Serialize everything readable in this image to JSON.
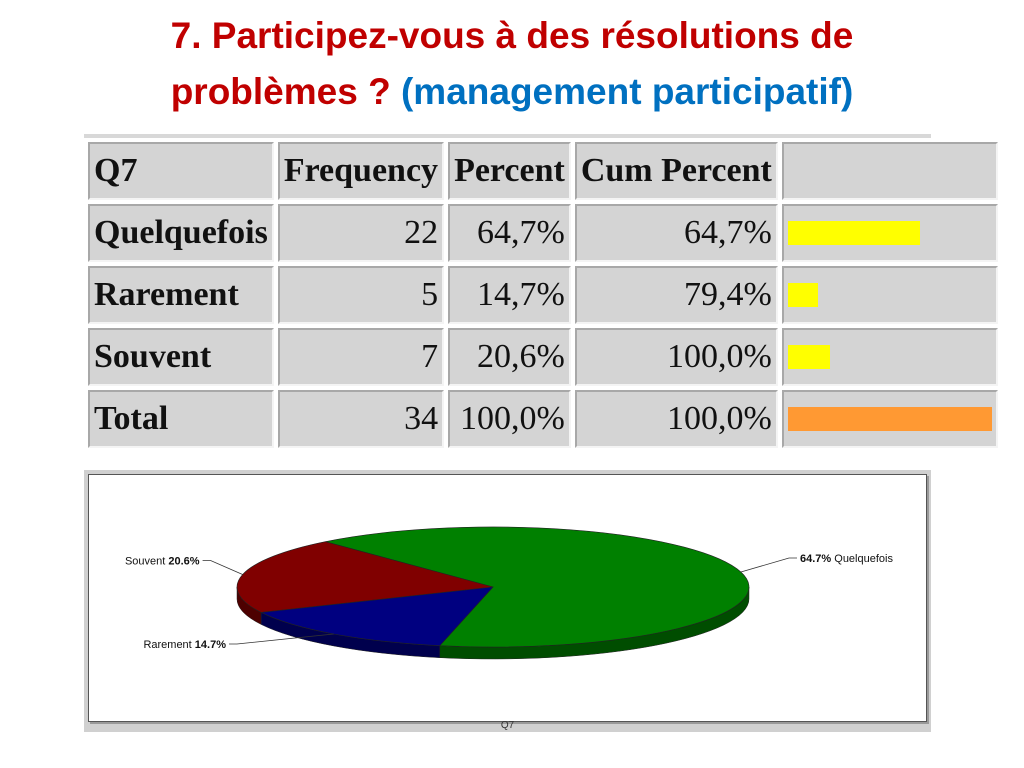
{
  "title": {
    "line1": "7. Participez-vous à des résolutions de",
    "line2_red": "problèmes ? ",
    "line2_blue": "(management participatif)"
  },
  "table": {
    "headers": [
      "Q7",
      "Frequency",
      "Percent",
      "Cum Percent",
      ""
    ],
    "rows": [
      {
        "label": "Quelquefois",
        "frequency": "22",
        "percent": "64,7%",
        "cum_percent": "64,7%",
        "bar_fraction": 0.647,
        "bar_color": "#FFFF00"
      },
      {
        "label": "Rarement",
        "frequency": "5",
        "percent": "14,7%",
        "cum_percent": "79,4%",
        "bar_fraction": 0.147,
        "bar_color": "#FFFF00"
      },
      {
        "label": "Souvent",
        "frequency": "7",
        "percent": "20,6%",
        "cum_percent": "100,0%",
        "bar_fraction": 0.206,
        "bar_color": "#FFFF00"
      },
      {
        "label": "Total",
        "frequency": "34",
        "percent": "100,0%",
        "cum_percent": "100,0%",
        "bar_fraction": 1.0,
        "bar_color": "#FF9933"
      }
    ]
  },
  "chart_data": {
    "type": "pie",
    "xlabel": "Q7",
    "slices": [
      {
        "label": "Quelquefois",
        "value": 64.7,
        "display": "64.7%",
        "color": "#008000"
      },
      {
        "label": "Souvent",
        "value": 20.6,
        "display": "20.6%",
        "color": "#800000"
      },
      {
        "label": "Rarement",
        "value": 14.7,
        "display": "14.7%",
        "color": "#000080"
      }
    ]
  }
}
